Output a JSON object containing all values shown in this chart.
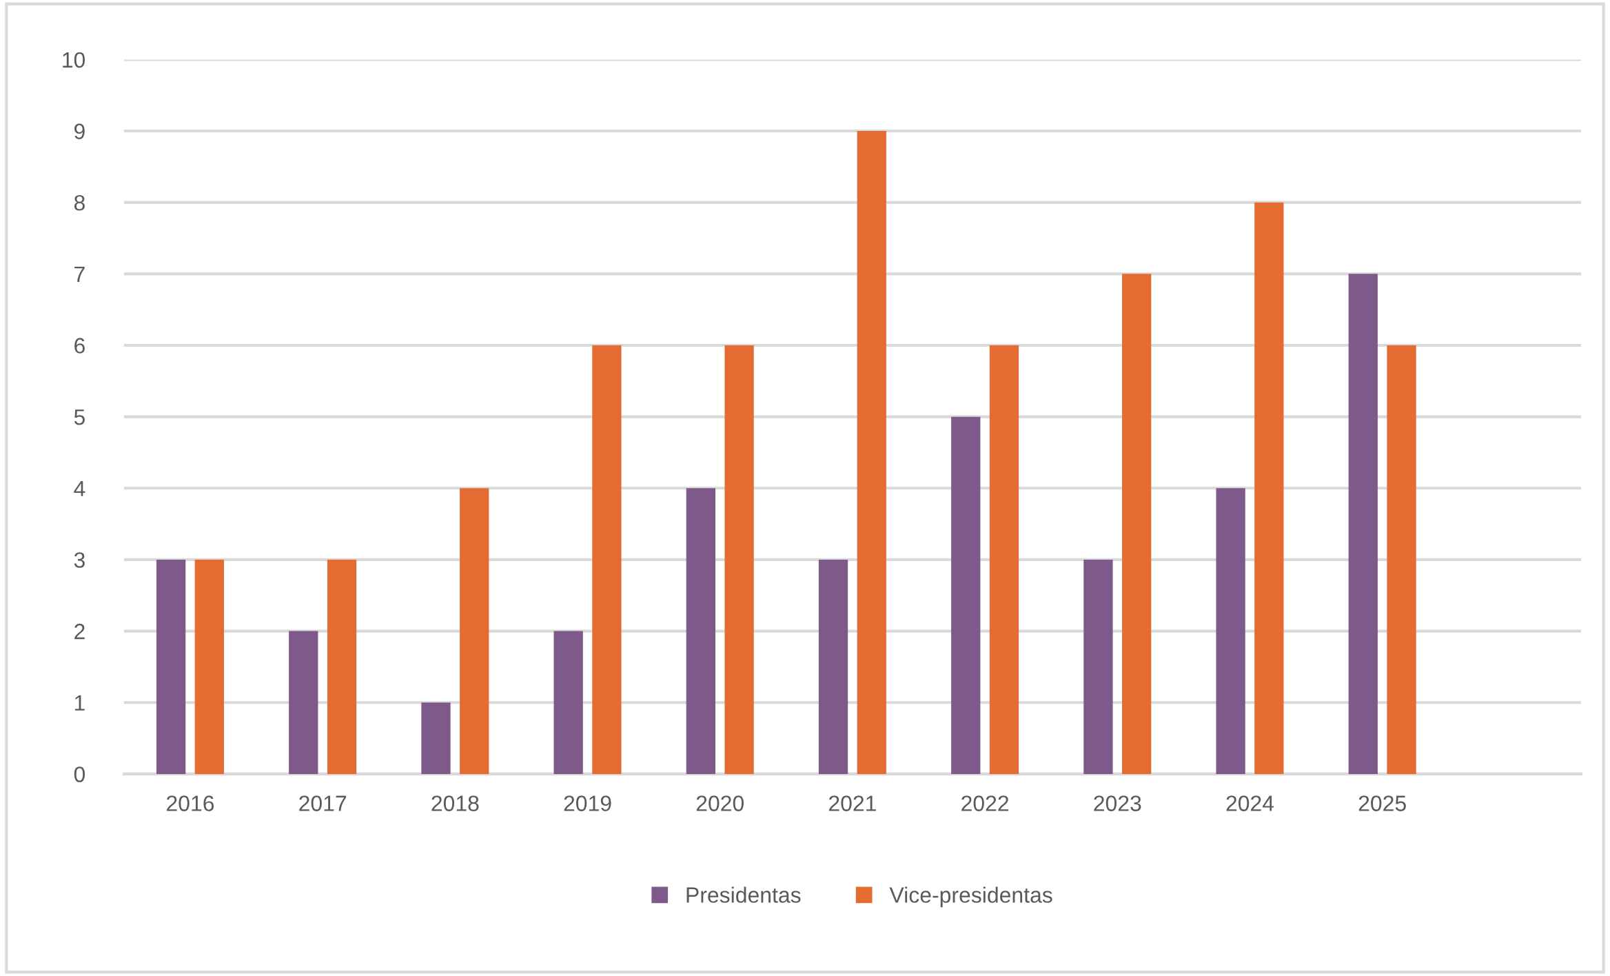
{
  "chart_data": {
    "type": "bar",
    "categories": [
      "2016",
      "2017",
      "2018",
      "2019",
      "2020",
      "2021",
      "2022",
      "2023",
      "2024",
      "2025",
      null
    ],
    "series": [
      {
        "name": "Presidentas",
        "color": "#7e5a8a",
        "values": [
          3,
          2,
          1,
          2,
          4,
          3,
          5,
          3,
          4,
          7,
          null
        ]
      },
      {
        "name": "Vice-presidentas",
        "color": "#e46c32",
        "values": [
          3,
          3,
          4,
          6,
          6,
          9,
          6,
          7,
          8,
          6,
          null
        ]
      }
    ],
    "ylim": [
      0,
      10
    ],
    "yticks": [
      0,
      1,
      2,
      3,
      4,
      5,
      6,
      7,
      8,
      9,
      10
    ],
    "grid": "y",
    "legend": "bottom"
  }
}
